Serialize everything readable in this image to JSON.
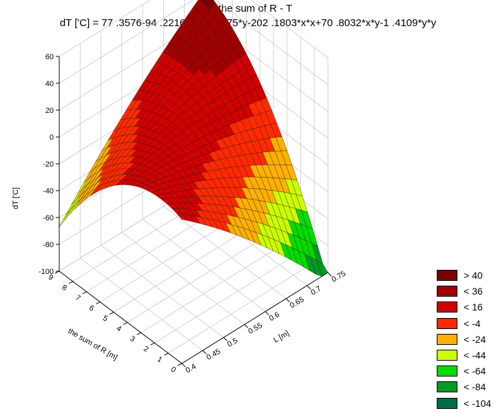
{
  "chart_data": {
    "type": "surface",
    "title": "L - the sum of R - T",
    "subtitle": "dT ['C] = 77 .3576-94 .2216*x-23 .8775*y-202 .1803*x*x+70 .8032*x*y-1 .4109*y*y",
    "equation": {
      "intercept": 77.3576,
      "x": -94.2216,
      "y": -23.8775,
      "xx": -202.1803,
      "xy": 70.8032,
      "yy": -1.4109
    },
    "x_axis": {
      "label": "L [m]",
      "range": [
        0.4,
        0.75
      ],
      "ticks": [
        "0.4",
        "0.45",
        "0.5",
        "0.55",
        "0.6",
        "0.65",
        "0.7",
        "0.75"
      ]
    },
    "y_axis": {
      "label": "the sum of R [m]",
      "range": [
        0,
        9
      ],
      "ticks": [
        "0",
        "1",
        "2",
        "3",
        "4",
        "5",
        "6",
        "7",
        "8",
        "9"
      ]
    },
    "z_axis": {
      "label": "dT ['C]",
      "range": [
        -100,
        60
      ],
      "ticks": [
        "60",
        "40",
        "20",
        "0",
        "-20",
        "-40",
        "-60",
        "-80",
        "-100"
      ]
    },
    "grid": true,
    "legend_position": "bottom-right",
    "legend": [
      {
        "label": "> 40",
        "color": "#7a0000"
      },
      {
        "label": "< 36",
        "color": "#a10000"
      },
      {
        "label": "< 16",
        "color": "#d10000"
      },
      {
        "label": "< -4",
        "color": "#ff2a00"
      },
      {
        "label": "< -24",
        "color": "#ffb000"
      },
      {
        "label": "< -44",
        "color": "#ccff00"
      },
      {
        "label": "< -64",
        "color": "#00dd00"
      },
      {
        "label": "< -84",
        "color": "#009a22"
      },
      {
        "label": "< -104",
        "color": "#006b4a"
      }
    ]
  }
}
